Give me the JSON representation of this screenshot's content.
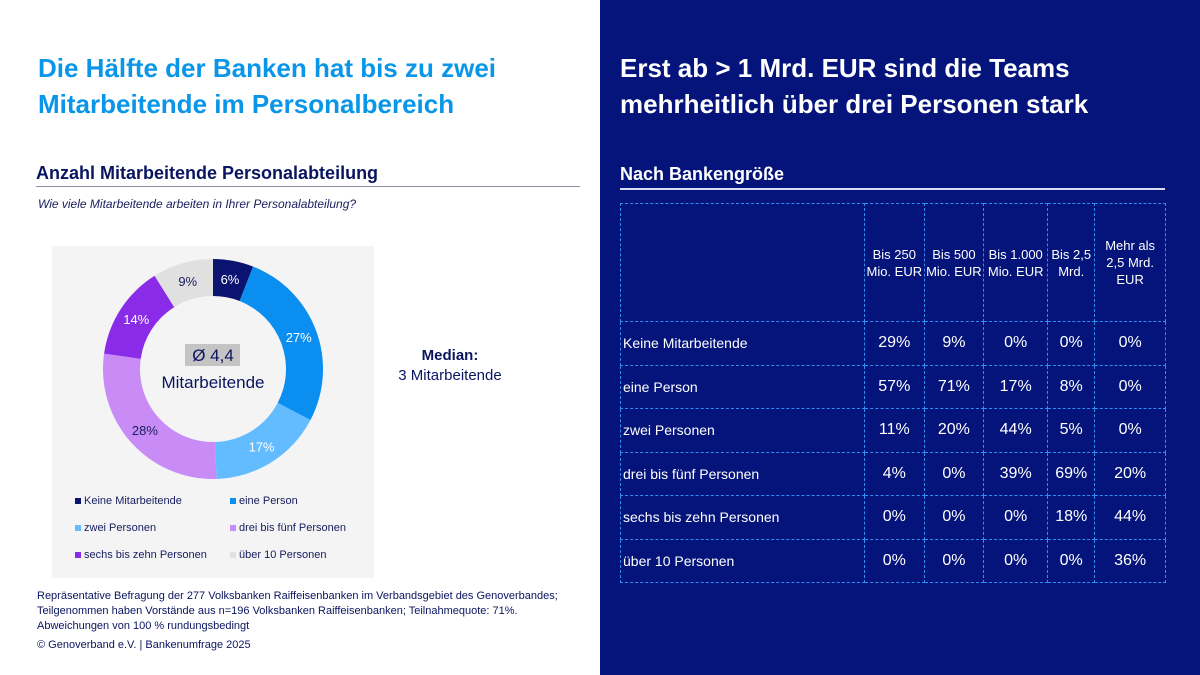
{
  "left_panel": {
    "headline": "Die Hälfte der Banken hat bis zu zwei Mitarbeitende im Personalbereich",
    "section_title": "Anzahl Mitarbeitende Personalabteilung",
    "question": "Wie viele Mitarbeitende arbeiten in Ihrer Personalabteilung?",
    "center_avg": "Ø 4,4",
    "center_unit": "Mitarbeitende",
    "median_label": "Median:",
    "median_value": "3 Mitarbeitende",
    "footnote": "Repräsentative Befragung der 277 Volksbanken Raiffeisenbanken im Verbandsgebiet des Genoverbandes; Teilgenommen haben Vorstände aus n=196 Volksbanken Raiffeisenbanken; Teilnahmequote: 71%. Abweichungen von 100 % rundungsbedingt",
    "copyright": "© Genoverband e.V. | Bankenumfrage 2025"
  },
  "right_panel": {
    "headline": "Erst ab > 1 Mrd. EUR sind die Teams mehrheitlich über drei Personen stark",
    "section_title": "Nach Bankengröße",
    "table": {
      "columns": [
        "Bis 250 Mio. EUR",
        "Bis 500 Mio. EUR",
        "Bis 1.000 Mio. EUR",
        "Bis 2,5 Mrd.",
        "Mehr als 2,5 Mrd. EUR"
      ],
      "rows": [
        {
          "label": "Keine Mitarbeitende",
          "values": [
            "29%",
            "9%",
            "0%",
            "0%",
            "0%"
          ]
        },
        {
          "label": "eine Person",
          "values": [
            "57%",
            "71%",
            "17%",
            "8%",
            "0%"
          ]
        },
        {
          "label": "zwei Personen",
          "values": [
            "11%",
            "20%",
            "44%",
            "5%",
            "0%"
          ]
        },
        {
          "label": "drei bis fünf Personen",
          "values": [
            "4%",
            "0%",
            "39%",
            "69%",
            "20%"
          ]
        },
        {
          "label": "sechs bis zehn Personen",
          "values": [
            "0%",
            "0%",
            "0%",
            "18%",
            "44%"
          ]
        },
        {
          "label": "über 10 Personen",
          "values": [
            "0%",
            "0%",
            "0%",
            "0%",
            "36%"
          ]
        }
      ]
    }
  },
  "colors": {
    "accent_blue": "#0a96e8",
    "navy": "#04147a"
  },
  "chart_data": [
    {
      "type": "pie",
      "variant": "donut",
      "title": "Anzahl Mitarbeitende Personalabteilung",
      "categories": [
        "Keine Mitarbeitende",
        "eine Person",
        "zwei Personen",
        "drei bis fünf Personen",
        "sechs bis zehn Personen",
        "über 10 Personen"
      ],
      "values": [
        6,
        27,
        17,
        28,
        14,
        9
      ],
      "labels": [
        "6%",
        "27%",
        "17%",
        "28%",
        "14%",
        "9%"
      ],
      "colors": [
        "#0a1470",
        "#0a8ef0",
        "#62bcff",
        "#c98cf6",
        "#8a2be8",
        "#e0e0e0"
      ],
      "label_colors": [
        "#ffffff",
        "#ffffff",
        "#ffffff",
        "#1a2060",
        "#ffffff",
        "#1a2060"
      ],
      "center_text": [
        "Ø 4,4",
        "Mitarbeitende"
      ],
      "legend": "bottom",
      "unit": "%"
    },
    {
      "type": "table",
      "title": "Nach Bankengröße",
      "columns": [
        "Bis 250 Mio. EUR",
        "Bis 500 Mio. EUR",
        "Bis 1.000 Mio. EUR",
        "Bis 2,5 Mrd.",
        "Mehr als 2,5 Mrd. EUR"
      ],
      "rows": [
        "Keine Mitarbeitende",
        "eine Person",
        "zwei Personen",
        "drei bis fünf Personen",
        "sechs bis zehn Personen",
        "über 10 Personen"
      ],
      "values": [
        [
          29,
          9,
          0,
          0,
          0
        ],
        [
          57,
          71,
          17,
          8,
          0
        ],
        [
          11,
          20,
          44,
          5,
          0
        ],
        [
          4,
          0,
          39,
          69,
          20
        ],
        [
          0,
          0,
          0,
          18,
          44
        ],
        [
          0,
          0,
          0,
          0,
          36
        ]
      ],
      "unit": "%"
    }
  ]
}
